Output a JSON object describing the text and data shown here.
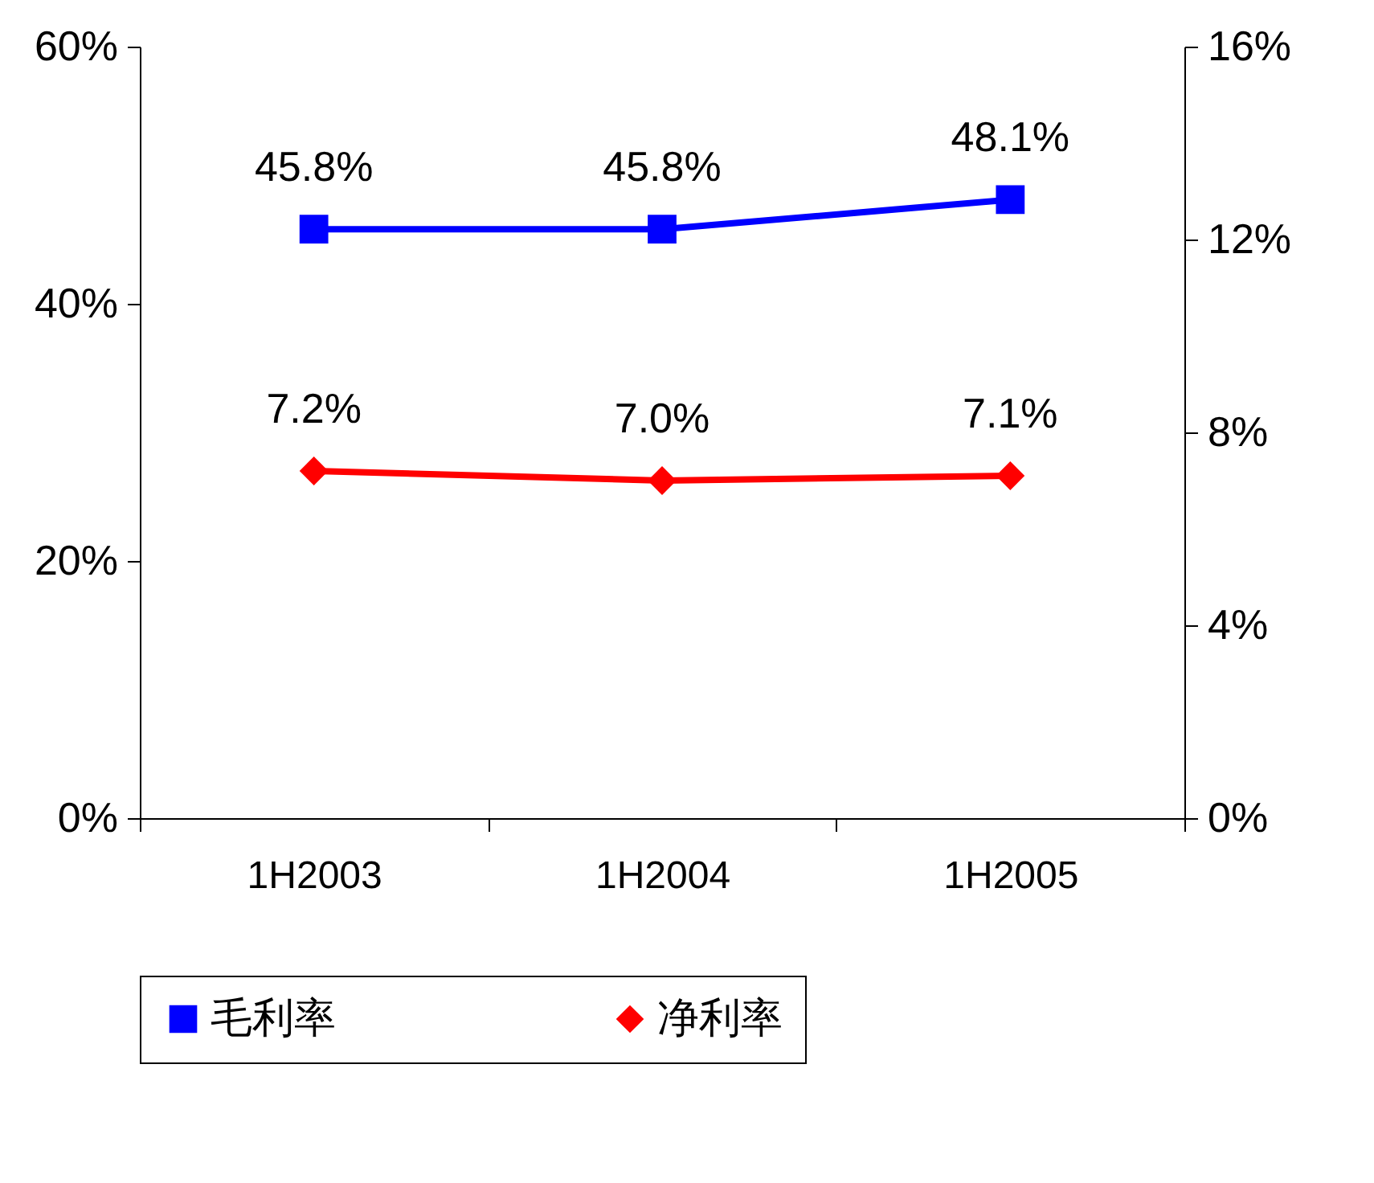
{
  "chart_data": {
    "type": "line",
    "categories": [
      "1H2003",
      "1H2004",
      "1H2005"
    ],
    "series": [
      {
        "name": "毛利率",
        "color": "#0000ff",
        "marker": "square",
        "values": [
          45.8,
          45.8,
          48.1
        ],
        "value_labels": [
          "45.8%",
          "45.8%",
          "48.1%"
        ]
      },
      {
        "name": "净利率",
        "color": "#ff0000",
        "marker": "diamond",
        "axis": "y2",
        "values": [
          7.2,
          7.0,
          7.1
        ],
        "value_labels": [
          "7.2%",
          "7.0%",
          "7.1%"
        ]
      }
    ],
    "ylim": [
      0,
      60
    ],
    "yticks": [
      {
        "value": 0,
        "label": "0%"
      },
      {
        "value": 20,
        "label": "20%"
      },
      {
        "value": 40,
        "label": "40%"
      },
      {
        "value": 60,
        "label": "60%"
      }
    ],
    "y2lim": [
      0,
      16
    ],
    "y2ticks": [
      {
        "value": 0,
        "label": "0%"
      },
      {
        "value": 4,
        "label": "4%"
      },
      {
        "value": 8,
        "label": "8%"
      },
      {
        "value": 12,
        "label": "12%"
      },
      {
        "value": 16,
        "label": "16%"
      }
    ],
    "grid": false,
    "legend": "bottom",
    "line_style": "solid"
  }
}
